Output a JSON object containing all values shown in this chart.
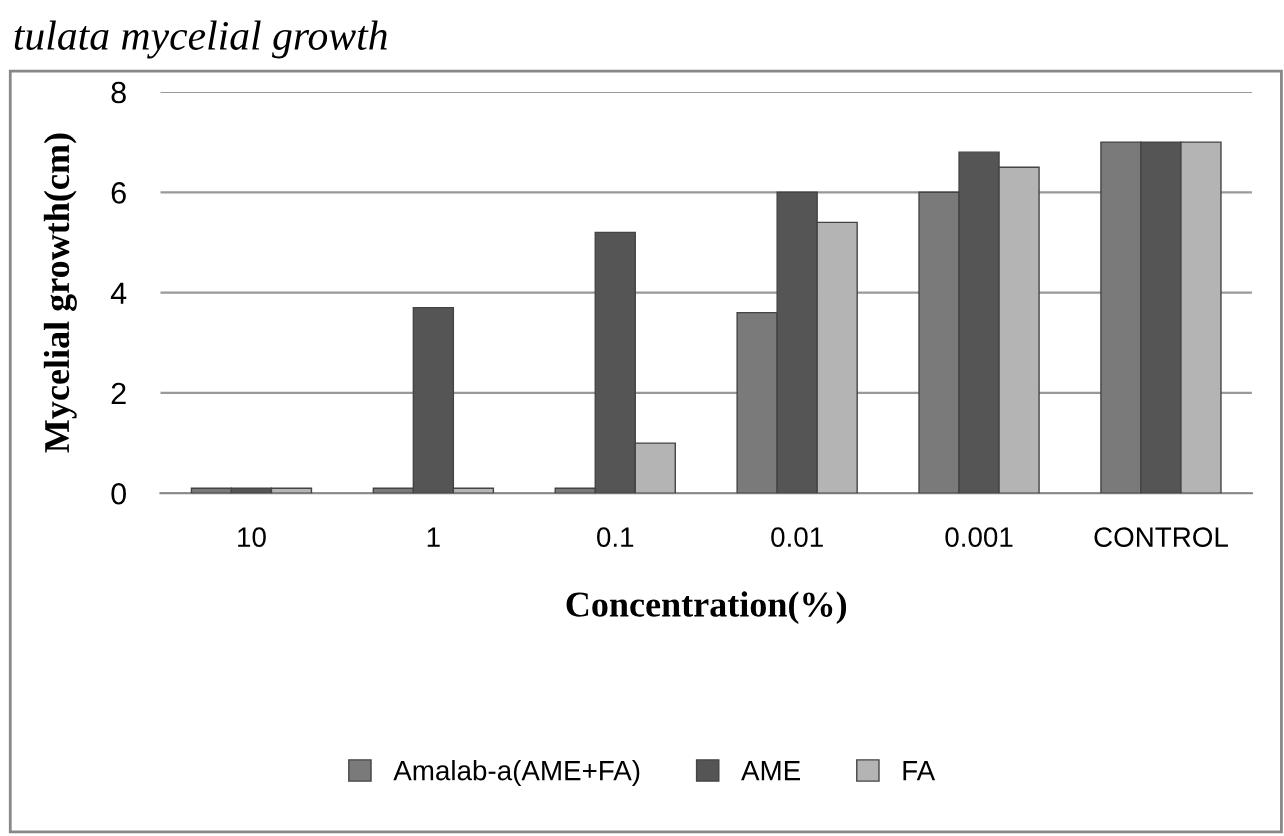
{
  "chart_data": {
    "type": "bar",
    "title": "tulata mycelial growth",
    "categories": [
      "10",
      "1",
      "0.1",
      "0.01",
      "0.001",
      "CONTROL"
    ],
    "series": [
      {
        "name": "Amalab-a(AME+FA)",
        "color": "#7a7a7a",
        "values": [
          0.1,
          0.1,
          0.1,
          3.6,
          6.0,
          7.0
        ]
      },
      {
        "name": "AME",
        "color": "#555555",
        "values": [
          0.1,
          3.7,
          5.2,
          6.0,
          6.8,
          7.0
        ]
      },
      {
        "name": "FA",
        "color": "#b4b4b4",
        "values": [
          0.1,
          0.1,
          1.0,
          5.4,
          6.5,
          7.0
        ]
      }
    ],
    "xlabel": "Concentration(%)",
    "ylabel": "Mycelial growth(cm)",
    "ylim": [
      0,
      8
    ],
    "yticks": [
      0,
      2,
      4,
      6,
      8
    ],
    "grid": "y",
    "legend": "bottom"
  }
}
